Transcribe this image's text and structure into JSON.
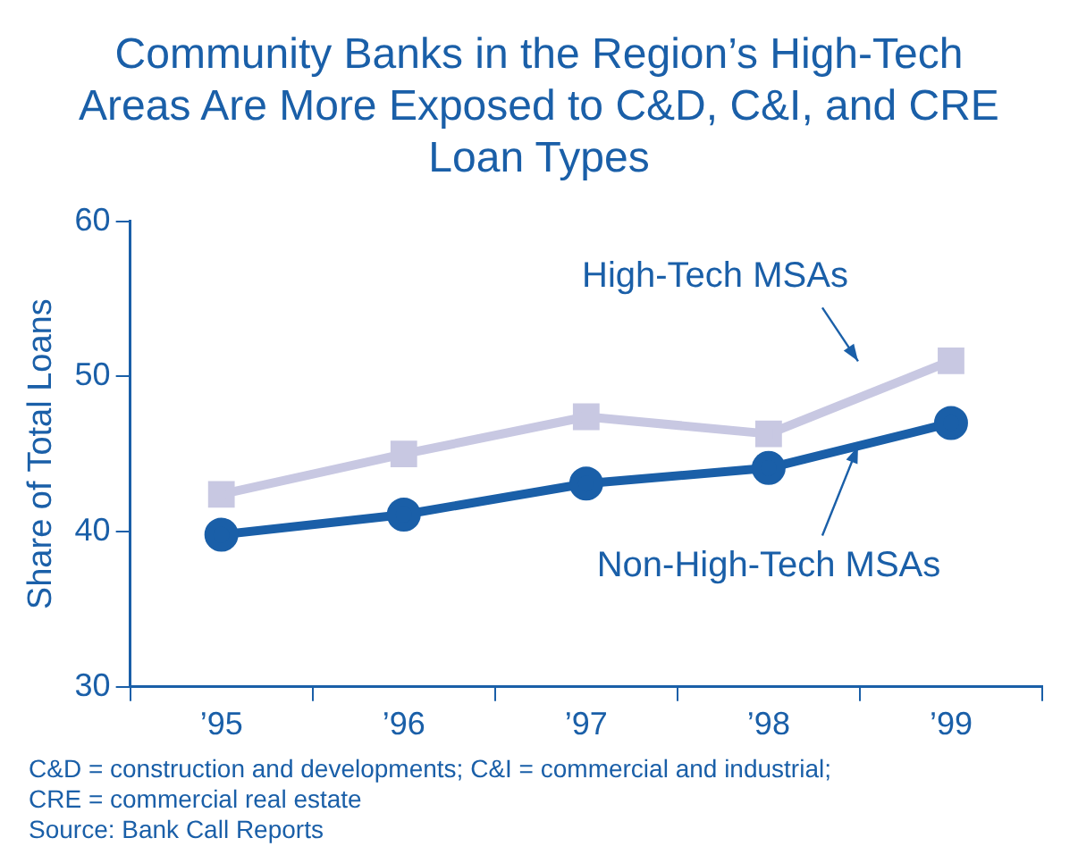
{
  "chart_data": {
    "type": "line",
    "title": "Community Banks in the Region’s High-Tech Areas Are More Exposed to C&D, C&I, and CRE Loan Types",
    "ylabel": "Share of Total Loans",
    "categories": [
      "’95",
      "’96",
      "’97",
      "’98",
      "’99"
    ],
    "series": [
      {
        "name": "High-Tech MSAs",
        "color": "#c8c8e2",
        "marker": "square",
        "values": [
          42.4,
          45.0,
          47.4,
          46.3,
          51.0
        ]
      },
      {
        "name": "Non-High-Tech MSAs",
        "color": "#1a5fa8",
        "marker": "circle",
        "values": [
          39.8,
          41.1,
          43.1,
          44.1,
          47.0
        ]
      }
    ],
    "ylim": [
      30,
      60
    ],
    "yticks": [
      30,
      40,
      50,
      60
    ],
    "grid": false,
    "legend": false,
    "annotations": [
      "C&D = construction and developments; C&I = commercial and industrial;",
      "CRE = commercial real estate",
      "Source: Bank Call Reports"
    ]
  }
}
